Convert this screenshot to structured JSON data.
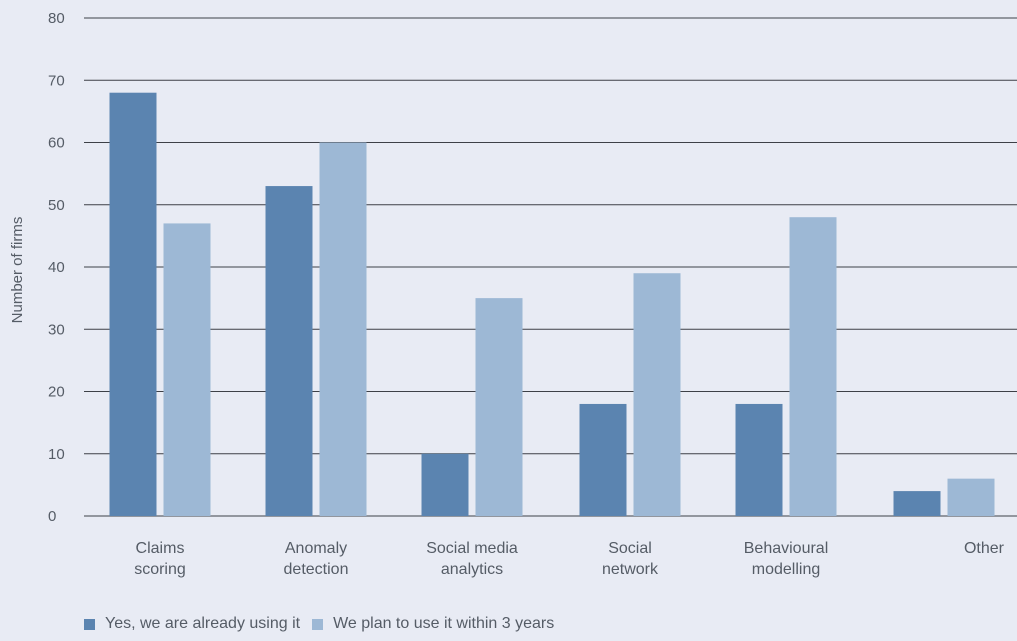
{
  "chart_data": {
    "type": "bar",
    "ylabel": "Number of firms",
    "ylim": [
      0,
      80
    ],
    "yticks": [
      "0",
      "10",
      "20",
      "30",
      "40",
      "50",
      "60",
      "70",
      "80"
    ],
    "categories": [
      [
        "Claims",
        "scoring"
      ],
      [
        "Anomaly",
        "detection"
      ],
      [
        "Social media",
        "analytics"
      ],
      [
        "Social",
        "network"
      ],
      [
        "Behavioural",
        "modelling"
      ],
      [
        "Other"
      ]
    ],
    "series": [
      {
        "name": "Yes, we are already using it",
        "color": "#5b84b0",
        "values": [
          68,
          53,
          10,
          18,
          18,
          4
        ]
      },
      {
        "name": "We plan to use it within 3 years",
        "color": "#9db8d5",
        "values": [
          47,
          60,
          35,
          39,
          48,
          6
        ]
      }
    ],
    "grid": true,
    "legend_position": "bottom-left"
  }
}
